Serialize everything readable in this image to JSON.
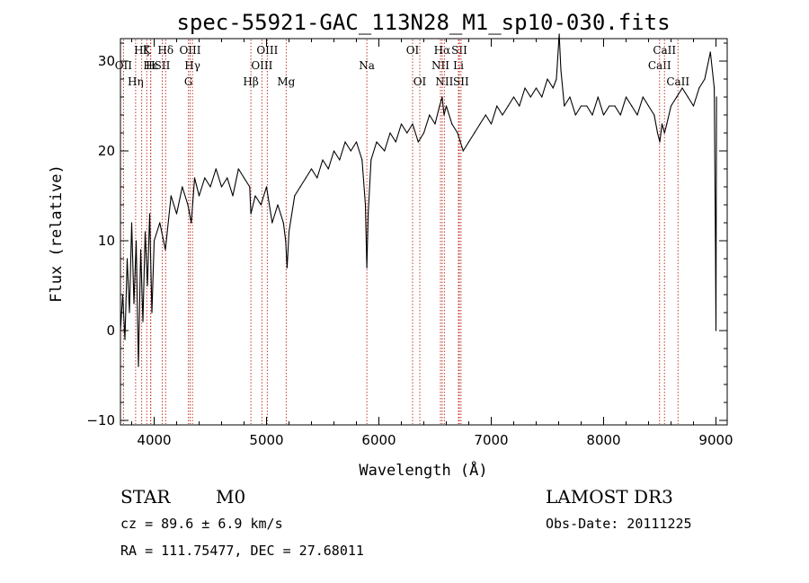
{
  "chart_data": {
    "type": "line",
    "title": "spec-55921-GAC_113N28_M1_sp10-030.fits",
    "xlabel": "Wavelength (Å)",
    "ylabel": "Flux (relative)",
    "xlim": [
      3700,
      9100
    ],
    "ylim": [
      -10.5,
      32.5
    ],
    "x_ticks": [
      4000,
      5000,
      6000,
      7000,
      8000,
      9000
    ],
    "x_tick_labels": [
      "4000",
      "5000",
      "6000",
      "7000",
      "8000",
      "9000"
    ],
    "y_ticks": [
      -10,
      0,
      10,
      20,
      30
    ],
    "y_tick_labels": [
      "−10",
      "0",
      "10",
      "20",
      "30"
    ],
    "series": [
      {
        "name": "flux",
        "x": [
          3700,
          3720,
          3740,
          3760,
          3780,
          3800,
          3820,
          3840,
          3860,
          3880,
          3900,
          3920,
          3940,
          3960,
          3980,
          4000,
          4050,
          4100,
          4150,
          4200,
          4250,
          4300,
          4330,
          4360,
          4400,
          4450,
          4500,
          4550,
          4600,
          4650,
          4700,
          4750,
          4800,
          4850,
          4861,
          4900,
          4950,
          5000,
          5050,
          5100,
          5150,
          5170,
          5183,
          5200,
          5250,
          5300,
          5350,
          5400,
          5450,
          5500,
          5550,
          5600,
          5650,
          5700,
          5750,
          5800,
          5850,
          5880,
          5893,
          5905,
          5930,
          5980,
          6050,
          6100,
          6150,
          6200,
          6250,
          6300,
          6350,
          6400,
          6450,
          6500,
          6540,
          6563,
          6580,
          6600,
          6650,
          6700,
          6750,
          6800,
          6850,
          6900,
          6950,
          7000,
          7050,
          7100,
          7150,
          7200,
          7250,
          7300,
          7350,
          7400,
          7450,
          7500,
          7550,
          7580,
          7605,
          7620,
          7650,
          7700,
          7750,
          7800,
          7850,
          7900,
          7950,
          8000,
          8050,
          8100,
          8150,
          8200,
          8250,
          8300,
          8350,
          8400,
          8450,
          8480,
          8500,
          8520,
          8542,
          8562,
          8600,
          8650,
          8700,
          8750,
          8800,
          8850,
          8900,
          8950,
          8985,
          8995,
          9000,
          9005
        ],
        "y": [
          0,
          4,
          -1,
          8,
          2,
          12,
          3,
          10,
          -4,
          9,
          1,
          11,
          5,
          13,
          2,
          10,
          12,
          9,
          15,
          13,
          16,
          14,
          12,
          17,
          15,
          17,
          16,
          18,
          16,
          17,
          15,
          18,
          17,
          16,
          13,
          15,
          14,
          16,
          12,
          14,
          12,
          10,
          7,
          11,
          15,
          16,
          17,
          18,
          17,
          19,
          18,
          20,
          19,
          21,
          20,
          21,
          19,
          14,
          7,
          13,
          19,
          21,
          20,
          22,
          21,
          23,
          22,
          23,
          21,
          22,
          24,
          23,
          25,
          26,
          24,
          25,
          23,
          22,
          20,
          21,
          22,
          23,
          24,
          23,
          25,
          24,
          25,
          26,
          25,
          27,
          26,
          27,
          26,
          28,
          27,
          28,
          33,
          29,
          25,
          26,
          24,
          25,
          25,
          24,
          26,
          24,
          25,
          25,
          24,
          26,
          25,
          24,
          26,
          25,
          24,
          22,
          21,
          23,
          22,
          23,
          25,
          26,
          27,
          26,
          25,
          27,
          28,
          31,
          27,
          10,
          0,
          26
        ]
      }
    ],
    "spectral_lines": [
      {
        "label": "OII",
        "x": 3727,
        "row": 1
      },
      {
        "label": "Hη",
        "x": 3835,
        "row": 2
      },
      {
        "label": "Hζ",
        "x": 3889,
        "row": 0
      },
      {
        "label": "K",
        "x": 3934,
        "row": 0
      },
      {
        "label": "H",
        "x": 3968,
        "row": 1
      },
      {
        "label": "Hε",
        "x": 3970,
        "row": 1
      },
      {
        "label": "SII",
        "x": 4072,
        "row": 1
      },
      {
        "label": "Hδ",
        "x": 4102,
        "row": 0
      },
      {
        "label": "G",
        "x": 4305,
        "row": 2
      },
      {
        "label": "OIII",
        "x": 4320,
        "row": 0
      },
      {
        "label": "Hγ",
        "x": 4341,
        "row": 1
      },
      {
        "label": "Hβ",
        "x": 4861,
        "row": 2
      },
      {
        "label": "OIII",
        "x": 4959,
        "row": 1
      },
      {
        "label": "OIII",
        "x": 5007,
        "row": 0
      },
      {
        "label": "Mg",
        "x": 5175,
        "row": 2
      },
      {
        "label": "Na",
        "x": 5893,
        "row": 1
      },
      {
        "label": "OI",
        "x": 6300,
        "row": 0
      },
      {
        "label": "OI",
        "x": 6364,
        "row": 2
      },
      {
        "label": "NII",
        "x": 6548,
        "row": 1
      },
      {
        "label": "Hα",
        "x": 6563,
        "row": 0
      },
      {
        "label": "NII",
        "x": 6583,
        "row": 2
      },
      {
        "label": "Li",
        "x": 6708,
        "row": 1
      },
      {
        "label": "SII",
        "x": 6716,
        "row": 0
      },
      {
        "label": "SII",
        "x": 6731,
        "row": 2
      },
      {
        "label": "CaII",
        "x": 8498,
        "row": 1
      },
      {
        "label": "CaII",
        "x": 8542,
        "row": 0
      },
      {
        "label": "CaII",
        "x": 8662,
        "row": 2
      }
    ]
  },
  "info": {
    "class": "STAR",
    "subclass": "M0",
    "survey": "LAMOST DR3",
    "cz": "cz = 89.6 ± 6.9 km/s",
    "obs_date": "Obs-Date: 20111225",
    "coords": "RA = 111.75477, DEC =  27.68011"
  }
}
